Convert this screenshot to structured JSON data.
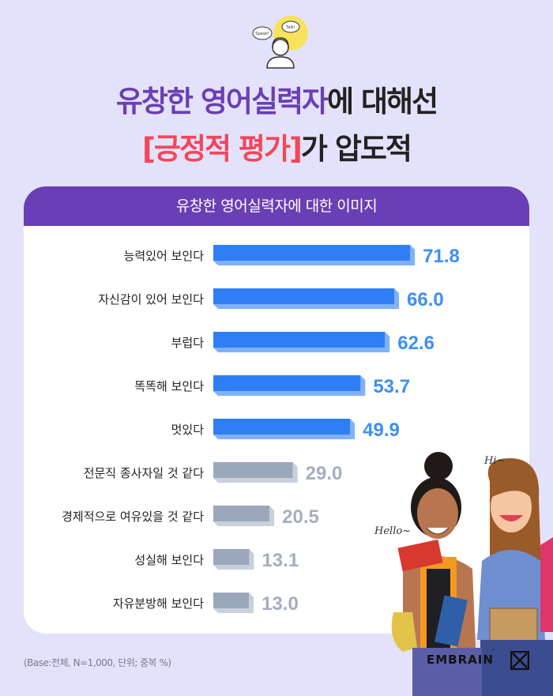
{
  "header": {
    "line1_purple": "유창한 영어실력자",
    "line1_dark": "에 대해선",
    "line2_red": "[긍정적 평가]",
    "line2_dark": "가 압도적",
    "icon_bubble_left": "Speak!",
    "icon_bubble_right": "Talk!"
  },
  "card": {
    "title": "유창한 영어실력자에 대한 이미지"
  },
  "chart_data": {
    "type": "bar",
    "orientation": "horizontal",
    "title": "유창한 영어실력자에 대한 이미지",
    "categories": [
      "능력있어 보인다",
      "자신감이 있어 보인다",
      "부럽다",
      "똑똑해 보인다",
      "멋있다",
      "전문직 종사자일 것 같다",
      "경제적으로 여유있을 것 같다",
      "성실해 보인다",
      "자유분방해 보인다"
    ],
    "values": [
      71.8,
      66.0,
      62.6,
      53.7,
      49.9,
      29.0,
      20.5,
      13.1,
      13.0
    ],
    "labels": [
      "71.8",
      "66.0",
      "62.6",
      "53.7",
      "49.9",
      "29.0",
      "20.5",
      "13.1",
      "13.0"
    ],
    "highlighted_count": 5,
    "colors": {
      "highlight": "#2f7ef6",
      "highlight_side": "#7fb1fb",
      "highlight_label": "#3d8ff6",
      "muted": "#9ba8bc",
      "muted_side": "#c8d0dc",
      "muted_label": "#a4aec0"
    }
  },
  "footnote": "(Base:전체, N=1,000, 단위; 중복 %)",
  "brand": "EMBRAIN",
  "illustration": {
    "speech_left": "Hello~",
    "speech_right": "Hi~"
  }
}
